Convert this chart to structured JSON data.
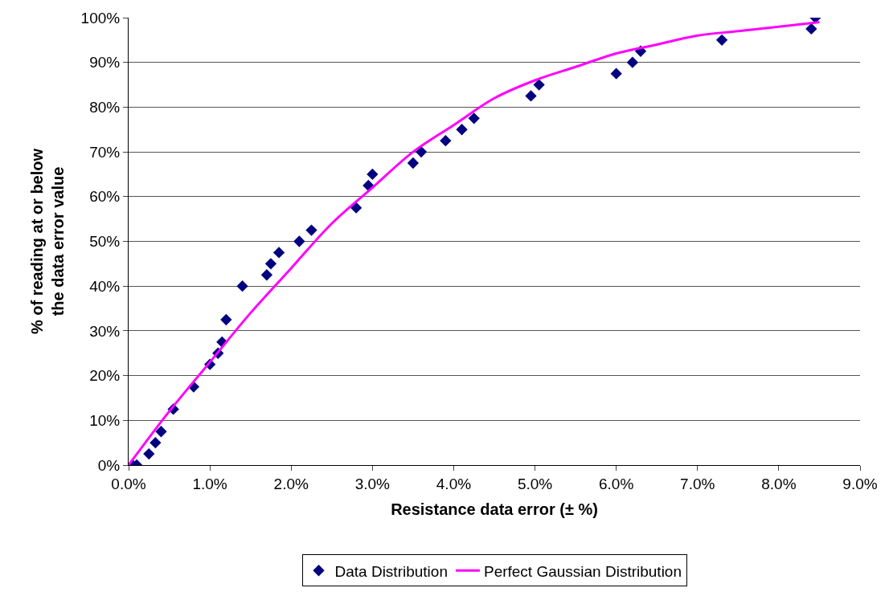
{
  "chart_data": {
    "type": "scatter",
    "xlabel": "Resistance data error (± %)",
    "ylabel": "% of reading at or below\nthe data error value",
    "xlim": [
      0,
      9
    ],
    "ylim": [
      0,
      100
    ],
    "xticks": [
      {
        "value": 0,
        "label": "0.0%"
      },
      {
        "value": 1,
        "label": "1.0%"
      },
      {
        "value": 2,
        "label": "2.0%"
      },
      {
        "value": 3,
        "label": "3.0%"
      },
      {
        "value": 4,
        "label": "4.0%"
      },
      {
        "value": 5,
        "label": "5.0%"
      },
      {
        "value": 6,
        "label": "6.0%"
      },
      {
        "value": 7,
        "label": "7.0%"
      },
      {
        "value": 8,
        "label": "8.0%"
      },
      {
        "value": 9,
        "label": "9.0%"
      }
    ],
    "yticks": [
      {
        "value": 0,
        "label": "0%"
      },
      {
        "value": 10,
        "label": "10%"
      },
      {
        "value": 20,
        "label": "20%"
      },
      {
        "value": 30,
        "label": "30%"
      },
      {
        "value": 40,
        "label": "40%"
      },
      {
        "value": 50,
        "label": "50%"
      },
      {
        "value": 60,
        "label": "60%"
      },
      {
        "value": 70,
        "label": "70%"
      },
      {
        "value": 80,
        "label": "80%"
      },
      {
        "value": 90,
        "label": "90%"
      },
      {
        "value": 100,
        "label": "100%"
      }
    ],
    "grid": "y",
    "legend": "bottom",
    "marker": "diamond",
    "series": [
      {
        "name": "Data Distribution",
        "color": "#000080",
        "x": [
          0.05,
          0.1,
          0.25,
          0.33,
          0.4,
          0.55,
          0.8,
          1.0,
          1.1,
          1.15,
          1.2,
          1.4,
          1.7,
          1.75,
          1.85,
          2.1,
          2.25,
          2.8,
          2.95,
          3.0,
          3.5,
          3.6,
          3.9,
          4.1,
          4.25,
          4.95,
          5.05,
          6.0,
          6.2,
          6.3,
          7.3,
          8.4,
          8.45
        ],
        "values": [
          0,
          0,
          2.5,
          5,
          7.5,
          12.5,
          17.5,
          22.5,
          25,
          27.5,
          32.5,
          40,
          42.5,
          45,
          47.5,
          50,
          52.5,
          57.5,
          62.5,
          65,
          67.5,
          70,
          72.5,
          75,
          77.5,
          82.5,
          85,
          87.5,
          90,
          92.5,
          95,
          97.5,
          100
        ]
      },
      {
        "name": "Perfect Gaussian Distribution",
        "type": "line",
        "color": "#ff00ff",
        "marker": "none",
        "x": [
          0,
          0.5,
          1,
          1.5,
          2,
          2.5,
          3,
          3.5,
          4,
          4.5,
          5,
          5.5,
          6,
          6.5,
          7,
          7.5,
          8,
          8.5
        ],
        "values": [
          0,
          12,
          23,
          34,
          44,
          54,
          62,
          70,
          76,
          82,
          86,
          89,
          92,
          94,
          96,
          97,
          98,
          99
        ]
      }
    ]
  }
}
